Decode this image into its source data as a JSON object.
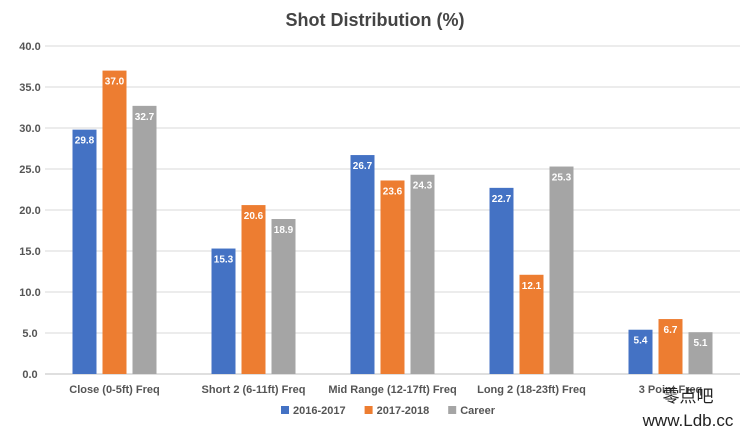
{
  "chart_data": {
    "type": "bar",
    "title": "Shot Distribution (%)",
    "categories": [
      "Close (0-5ft) Freq",
      "Short 2 (6-11ft) Freq",
      "Mid Range (12-17ft) Freq",
      "Long 2 (18-23ft) Freq",
      "3 Point Freq"
    ],
    "series": [
      {
        "name": "2016-2017",
        "color": "#4472C4",
        "values": [
          29.8,
          15.3,
          26.7,
          22.7,
          5.4
        ]
      },
      {
        "name": "2017-2018",
        "color": "#ED7D31",
        "values": [
          37.0,
          20.6,
          23.6,
          12.1,
          6.7
        ]
      },
      {
        "name": "Career",
        "color": "#A5A5A5",
        "values": [
          32.7,
          18.9,
          24.3,
          25.3,
          5.1
        ]
      }
    ],
    "ylim": [
      0,
      40
    ],
    "yticks": [
      "0.0",
      "5.0",
      "10.0",
      "15.0",
      "20.0",
      "25.0",
      "30.0",
      "35.0",
      "40.0"
    ],
    "grid": true,
    "legend": "bottom",
    "watermark": [
      "零点吧",
      "www.Ldb.cc"
    ]
  }
}
